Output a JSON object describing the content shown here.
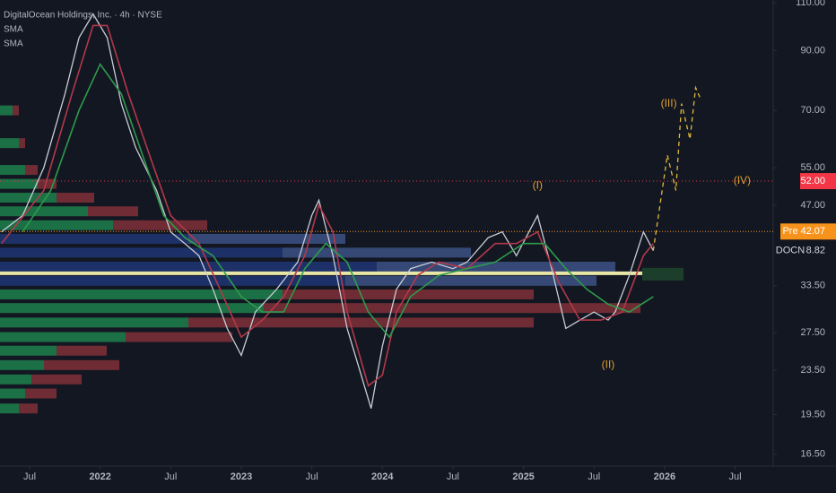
{
  "chart_data": {
    "type": "line",
    "title": "DigitalOcean Holdings, Inc. · 4h · NYSE",
    "log_scale": true,
    "xlim": [
      2021.29,
      2026.77
    ],
    "ylim": [
      15.7,
      111.3
    ],
    "xticks": [
      {
        "value": 2021.5,
        "label": "Jul"
      },
      {
        "value": 2022,
        "label": "2022"
      },
      {
        "value": 2022.5,
        "label": "Jul"
      },
      {
        "value": 2023,
        "label": "2023"
      },
      {
        "value": 2023.5,
        "label": "Jul"
      },
      {
        "value": 2024,
        "label": "2024"
      },
      {
        "value": 2024.5,
        "label": "Jul"
      },
      {
        "value": 2025,
        "label": "2025"
      },
      {
        "value": 2025.5,
        "label": "Jul"
      },
      {
        "value": 2026,
        "label": "2026"
      },
      {
        "value": 2026.5,
        "label": "Jul"
      }
    ],
    "yticks": [
      {
        "value": 16.5,
        "label": "16.50"
      },
      {
        "value": 19.5,
        "label": "19.50"
      },
      {
        "value": 23.5,
        "label": "23.50"
      },
      {
        "value": 27.5,
        "label": "27.50"
      },
      {
        "value": 33.5,
        "label": "33.50"
      },
      {
        "value": 47,
        "label": "47.00"
      },
      {
        "value": 55,
        "label": "55.00"
      },
      {
        "value": 70,
        "label": "70.00"
      },
      {
        "value": 90,
        "label": "90.00"
      },
      {
        "value": 110,
        "label": "110.00"
      }
    ],
    "series": [
      {
        "name": "DOCN",
        "color": "#c8ccd4",
        "x": [
          2021.3,
          2021.45,
          2021.6,
          2021.75,
          2021.85,
          2021.95,
          2022.05,
          2022.15,
          2022.25,
          2022.4,
          2022.5,
          2022.6,
          2022.7,
          2022.8,
          2022.9,
          2023.0,
          2023.1,
          2023.25,
          2023.4,
          2023.5,
          2023.55,
          2023.65,
          2023.75,
          2023.85,
          2023.92,
          2024.0,
          2024.1,
          2024.2,
          2024.35,
          2024.5,
          2024.6,
          2024.75,
          2024.85,
          2024.95,
          2025.1,
          2025.2,
          2025.3,
          2025.4,
          2025.5,
          2025.6,
          2025.65,
          2025.75,
          2025.85,
          2025.92
        ],
        "values": [
          42,
          45,
          55,
          75,
          95,
          105,
          95,
          72,
          60,
          50,
          42,
          40,
          38,
          33,
          28,
          25,
          30,
          33,
          37,
          45,
          48,
          38,
          28,
          23,
          20,
          26,
          33,
          36,
          37,
          36,
          37,
          41,
          42,
          38,
          45,
          36,
          28,
          29,
          30,
          29,
          30,
          35,
          42,
          38.82
        ]
      },
      {
        "name": "SMA",
        "color": "#b2394a",
        "x": [
          2021.3,
          2021.6,
          2021.8,
          2021.95,
          2022.05,
          2022.2,
          2022.35,
          2022.5,
          2022.7,
          2022.85,
          2023.0,
          2023.15,
          2023.3,
          2023.45,
          2023.55,
          2023.65,
          2023.75,
          2023.9,
          2024.0,
          2024.1,
          2024.25,
          2024.4,
          2024.6,
          2024.8,
          2024.95,
          2025.1,
          2025.25,
          2025.4,
          2025.55,
          2025.7,
          2025.85,
          2025.92
        ],
        "values": [
          40,
          50,
          75,
          100,
          100,
          75,
          58,
          45,
          40,
          33,
          27,
          29,
          32,
          38,
          47,
          42,
          30,
          22,
          23,
          30,
          35,
          37,
          36,
          40,
          40,
          42,
          34,
          29,
          29,
          30,
          38,
          40
        ]
      },
      {
        "name": "SMA",
        "color": "#2e9b4b",
        "x": [
          2021.45,
          2021.65,
          2021.85,
          2022.0,
          2022.15,
          2022.3,
          2022.45,
          2022.6,
          2022.8,
          2023.0,
          2023.15,
          2023.3,
          2023.45,
          2023.6,
          2023.75,
          2023.9,
          2024.05,
          2024.2,
          2024.4,
          2024.6,
          2024.8,
          2025.0,
          2025.15,
          2025.3,
          2025.45,
          2025.6,
          2025.75,
          2025.92
        ],
        "values": [
          42,
          50,
          70,
          85,
          75,
          58,
          45,
          41,
          38,
          32,
          30,
          30,
          36,
          40,
          37,
          30,
          27,
          32,
          35,
          36,
          37,
          40,
          40,
          36,
          33,
          31,
          30,
          32
        ]
      }
    ],
    "volume_profile": [
      {
        "price": 20,
        "up": 3,
        "down": 3,
        "up_color": "#1e7a4a",
        "down_color": "#7a2f36"
      },
      {
        "price": 21.3,
        "up": 4,
        "down": 5,
        "up_color": "#1e7a4a",
        "down_color": "#7a2f36"
      },
      {
        "price": 22.6,
        "up": 5,
        "down": 8,
        "up_color": "#1e7a4a",
        "down_color": "#7a2f36"
      },
      {
        "price": 24,
        "up": 7,
        "down": 12,
        "up_color": "#1e7a4a",
        "down_color": "#7a2f36"
      },
      {
        "price": 25.5,
        "up": 9,
        "down": 8,
        "up_color": "#1e7a4a",
        "down_color": "#7a2f36"
      },
      {
        "price": 27,
        "up": 20,
        "down": 17,
        "up_color": "#1e7a4a",
        "down_color": "#7a2f36"
      },
      {
        "price": 28.7,
        "up": 30,
        "down": 55,
        "up_color": "#1e7a4a",
        "down_color": "#7a2f36"
      },
      {
        "price": 30.5,
        "up": 42,
        "down": 60,
        "up_color": "#1e7a4a",
        "down_color": "#7a2f36"
      },
      {
        "price": 32.3,
        "up": 45,
        "down": 40,
        "up_color": "#1e7a4a",
        "down_color": "#7a2f36"
      },
      {
        "price": 34.2,
        "up": 55,
        "down": 40,
        "up_color": "#1f3470",
        "down_color": "#3b4f80"
      },
      {
        "price": 36.3,
        "up": 60,
        "down": 38,
        "up_color": "#1f3470",
        "down_color": "#3b4f80"
      },
      {
        "price": 38.5,
        "up": 45,
        "down": 30,
        "up_color": "#1f3470",
        "down_color": "#3b4f80"
      },
      {
        "price": 40.8,
        "up": 30,
        "down": 25,
        "up_color": "#1f3470",
        "down_color": "#3b4f80"
      },
      {
        "price": 43.2,
        "up": 18,
        "down": 15,
        "up_color": "#1e7a4a",
        "down_color": "#7a2f36"
      },
      {
        "price": 45.8,
        "up": 14,
        "down": 8,
        "up_color": "#1e7a4a",
        "down_color": "#7a2f36"
      },
      {
        "price": 48.5,
        "up": 9,
        "down": 6,
        "up_color": "#1e7a4a",
        "down_color": "#7a2f36"
      },
      {
        "price": 51.4,
        "up": 6,
        "down": 3,
        "up_color": "#1e7a4a",
        "down_color": "#7a2f36"
      },
      {
        "price": 54.5,
        "up": 4,
        "down": 2,
        "up_color": "#1e7a4a",
        "down_color": "#7a2f36"
      },
      {
        "price": 61,
        "up": 3,
        "down": 1,
        "up_color": "#1e7a4a",
        "down_color": "#7a2f36"
      },
      {
        "price": 70,
        "up": 2,
        "down": 1,
        "up_color": "#1e7a4a",
        "down_color": "#7a2f36"
      }
    ],
    "poc": 35.3,
    "poc_color": "#e8e6a6",
    "price_lines": [
      {
        "value": {
          "value": 52,
          "label": "52.00"
        },
        "color": "#f23645"
      },
      {
        "value": {
          "value": 42.07,
          "label": "42.07"
        },
        "tag": "Pre",
        "color": "#f7931a"
      }
    ],
    "projection": {
      "color": "#e0b83a",
      "x": [
        2025.92,
        2026.02,
        2026.08,
        2026.12,
        2026.18,
        2026.22,
        2026.25
      ],
      "values": [
        38.82,
        58,
        50,
        72,
        62,
        77,
        74
      ]
    },
    "annotations": [
      {
        "text": "(I)",
        "x": 2025.1,
        "y": 51
      },
      {
        "text": "(II)",
        "x": 2025.6,
        "y": 24
      },
      {
        "text": "(III)",
        "x": 2026.03,
        "y": 72
      },
      {
        "text": "(IV)",
        "x": 2026.55,
        "y": 52
      }
    ]
  }
}
